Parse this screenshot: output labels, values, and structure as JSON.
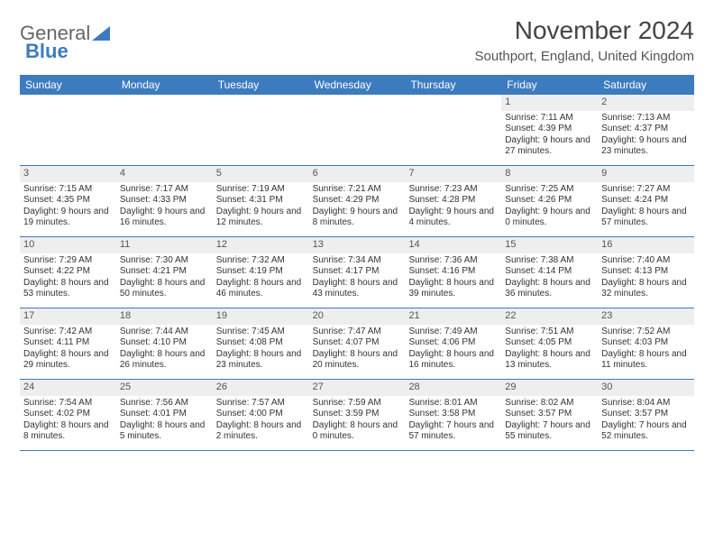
{
  "logo": {
    "text1": "General",
    "text2": "Blue"
  },
  "title": "November 2024",
  "location": "Southport, England, United Kingdom",
  "colors": {
    "header_bg": "#3d7bbf",
    "header_text": "#ffffff",
    "daynum_bg": "#eeeeee",
    "border": "#3d7bbf",
    "text": "#333333"
  },
  "day_headers": [
    "Sunday",
    "Monday",
    "Tuesday",
    "Wednesday",
    "Thursday",
    "Friday",
    "Saturday"
  ],
  "weeks": [
    [
      {
        "n": "",
        "sr": "",
        "ss": "",
        "dl": ""
      },
      {
        "n": "",
        "sr": "",
        "ss": "",
        "dl": ""
      },
      {
        "n": "",
        "sr": "",
        "ss": "",
        "dl": ""
      },
      {
        "n": "",
        "sr": "",
        "ss": "",
        "dl": ""
      },
      {
        "n": "",
        "sr": "",
        "ss": "",
        "dl": ""
      },
      {
        "n": "1",
        "sr": "Sunrise: 7:11 AM",
        "ss": "Sunset: 4:39 PM",
        "dl": "Daylight: 9 hours and 27 minutes."
      },
      {
        "n": "2",
        "sr": "Sunrise: 7:13 AM",
        "ss": "Sunset: 4:37 PM",
        "dl": "Daylight: 9 hours and 23 minutes."
      }
    ],
    [
      {
        "n": "3",
        "sr": "Sunrise: 7:15 AM",
        "ss": "Sunset: 4:35 PM",
        "dl": "Daylight: 9 hours and 19 minutes."
      },
      {
        "n": "4",
        "sr": "Sunrise: 7:17 AM",
        "ss": "Sunset: 4:33 PM",
        "dl": "Daylight: 9 hours and 16 minutes."
      },
      {
        "n": "5",
        "sr": "Sunrise: 7:19 AM",
        "ss": "Sunset: 4:31 PM",
        "dl": "Daylight: 9 hours and 12 minutes."
      },
      {
        "n": "6",
        "sr": "Sunrise: 7:21 AM",
        "ss": "Sunset: 4:29 PM",
        "dl": "Daylight: 9 hours and 8 minutes."
      },
      {
        "n": "7",
        "sr": "Sunrise: 7:23 AM",
        "ss": "Sunset: 4:28 PM",
        "dl": "Daylight: 9 hours and 4 minutes."
      },
      {
        "n": "8",
        "sr": "Sunrise: 7:25 AM",
        "ss": "Sunset: 4:26 PM",
        "dl": "Daylight: 9 hours and 0 minutes."
      },
      {
        "n": "9",
        "sr": "Sunrise: 7:27 AM",
        "ss": "Sunset: 4:24 PM",
        "dl": "Daylight: 8 hours and 57 minutes."
      }
    ],
    [
      {
        "n": "10",
        "sr": "Sunrise: 7:29 AM",
        "ss": "Sunset: 4:22 PM",
        "dl": "Daylight: 8 hours and 53 minutes."
      },
      {
        "n": "11",
        "sr": "Sunrise: 7:30 AM",
        "ss": "Sunset: 4:21 PM",
        "dl": "Daylight: 8 hours and 50 minutes."
      },
      {
        "n": "12",
        "sr": "Sunrise: 7:32 AM",
        "ss": "Sunset: 4:19 PM",
        "dl": "Daylight: 8 hours and 46 minutes."
      },
      {
        "n": "13",
        "sr": "Sunrise: 7:34 AM",
        "ss": "Sunset: 4:17 PM",
        "dl": "Daylight: 8 hours and 43 minutes."
      },
      {
        "n": "14",
        "sr": "Sunrise: 7:36 AM",
        "ss": "Sunset: 4:16 PM",
        "dl": "Daylight: 8 hours and 39 minutes."
      },
      {
        "n": "15",
        "sr": "Sunrise: 7:38 AM",
        "ss": "Sunset: 4:14 PM",
        "dl": "Daylight: 8 hours and 36 minutes."
      },
      {
        "n": "16",
        "sr": "Sunrise: 7:40 AM",
        "ss": "Sunset: 4:13 PM",
        "dl": "Daylight: 8 hours and 32 minutes."
      }
    ],
    [
      {
        "n": "17",
        "sr": "Sunrise: 7:42 AM",
        "ss": "Sunset: 4:11 PM",
        "dl": "Daylight: 8 hours and 29 minutes."
      },
      {
        "n": "18",
        "sr": "Sunrise: 7:44 AM",
        "ss": "Sunset: 4:10 PM",
        "dl": "Daylight: 8 hours and 26 minutes."
      },
      {
        "n": "19",
        "sr": "Sunrise: 7:45 AM",
        "ss": "Sunset: 4:08 PM",
        "dl": "Daylight: 8 hours and 23 minutes."
      },
      {
        "n": "20",
        "sr": "Sunrise: 7:47 AM",
        "ss": "Sunset: 4:07 PM",
        "dl": "Daylight: 8 hours and 20 minutes."
      },
      {
        "n": "21",
        "sr": "Sunrise: 7:49 AM",
        "ss": "Sunset: 4:06 PM",
        "dl": "Daylight: 8 hours and 16 minutes."
      },
      {
        "n": "22",
        "sr": "Sunrise: 7:51 AM",
        "ss": "Sunset: 4:05 PM",
        "dl": "Daylight: 8 hours and 13 minutes."
      },
      {
        "n": "23",
        "sr": "Sunrise: 7:52 AM",
        "ss": "Sunset: 4:03 PM",
        "dl": "Daylight: 8 hours and 11 minutes."
      }
    ],
    [
      {
        "n": "24",
        "sr": "Sunrise: 7:54 AM",
        "ss": "Sunset: 4:02 PM",
        "dl": "Daylight: 8 hours and 8 minutes."
      },
      {
        "n": "25",
        "sr": "Sunrise: 7:56 AM",
        "ss": "Sunset: 4:01 PM",
        "dl": "Daylight: 8 hours and 5 minutes."
      },
      {
        "n": "26",
        "sr": "Sunrise: 7:57 AM",
        "ss": "Sunset: 4:00 PM",
        "dl": "Daylight: 8 hours and 2 minutes."
      },
      {
        "n": "27",
        "sr": "Sunrise: 7:59 AM",
        "ss": "Sunset: 3:59 PM",
        "dl": "Daylight: 8 hours and 0 minutes."
      },
      {
        "n": "28",
        "sr": "Sunrise: 8:01 AM",
        "ss": "Sunset: 3:58 PM",
        "dl": "Daylight: 7 hours and 57 minutes."
      },
      {
        "n": "29",
        "sr": "Sunrise: 8:02 AM",
        "ss": "Sunset: 3:57 PM",
        "dl": "Daylight: 7 hours and 55 minutes."
      },
      {
        "n": "30",
        "sr": "Sunrise: 8:04 AM",
        "ss": "Sunset: 3:57 PM",
        "dl": "Daylight: 7 hours and 52 minutes."
      }
    ]
  ]
}
